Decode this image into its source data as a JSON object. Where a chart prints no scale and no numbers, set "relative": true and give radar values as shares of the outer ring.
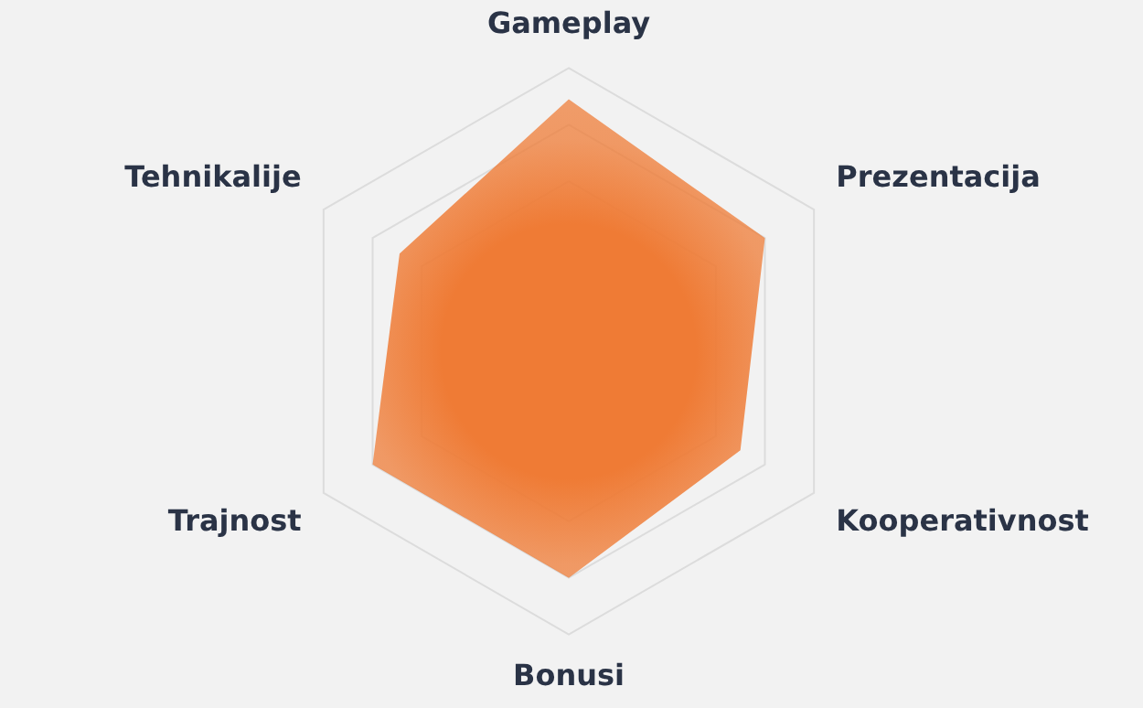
{
  "chart_data": {
    "type": "radar",
    "relative": true,
    "grid": true,
    "legend": false,
    "categories": [
      "Gameplay",
      "Prezentacija",
      "Kooperativnost",
      "Bonusi",
      "Trajnost",
      "Tehnikalije"
    ],
    "series": [
      {
        "color": "#ef7b35",
        "values": [
          0.89,
          0.8,
          0.7,
          0.8,
          0.8,
          0.69
        ]
      }
    ]
  }
}
